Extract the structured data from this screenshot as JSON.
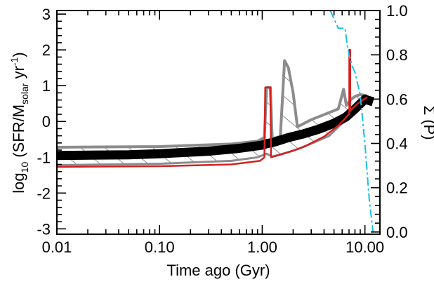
{
  "chart_data": {
    "type": "line",
    "title": "",
    "xlabel": "Time ago (Gyr)",
    "ylabel": {
      "prefix": "log",
      "prefix_sub": "10",
      "main_a": " (SFR/M",
      "main_sub": "solar",
      "main_b": " yr",
      "main_sup": "-1",
      "main_c": ")"
    },
    "y2label": "Σ (P)",
    "x_scale": "log",
    "xlim": [
      0.01,
      14.0
    ],
    "ylim": [
      -3.15,
      3.1
    ],
    "y2lim": [
      -0.01,
      1.0
    ],
    "x_ticks": [
      {
        "value": 0.01,
        "label": "0.01"
      },
      {
        "value": 0.1,
        "label": "0.10"
      },
      {
        "value": 1.0,
        "label": "1.00"
      },
      {
        "value": 10.0,
        "label": "10.00"
      }
    ],
    "y_ticks": [
      {
        "value": -3,
        "label": "-3"
      },
      {
        "value": -2,
        "label": "-2"
      },
      {
        "value": -1,
        "label": "-1"
      },
      {
        "value": 0,
        "label": "0"
      },
      {
        "value": 1,
        "label": "1"
      },
      {
        "value": 2,
        "label": "2"
      },
      {
        "value": 3,
        "label": "3"
      }
    ],
    "y2_ticks": [
      {
        "value": 0.0,
        "label": "0.0"
      },
      {
        "value": 0.2,
        "label": "0.2"
      },
      {
        "value": 0.4,
        "label": "0.4"
      },
      {
        "value": 0.6,
        "label": "0.6"
      },
      {
        "value": 0.8,
        "label": "0.8"
      },
      {
        "value": 1.0,
        "label": "1.0"
      }
    ],
    "series": [
      {
        "role": "upper-bound",
        "color": "#8c8c8c",
        "x": [
          0.01,
          0.1,
          0.5,
          0.9,
          1.05,
          1.1,
          1.15,
          1.2,
          1.25,
          1.5,
          1.65,
          1.8,
          2.0,
          2.2,
          3.0,
          4.5,
          5.5,
          6.2,
          6.6,
          7.2,
          8.0,
          9.0,
          10.5
        ],
        "y": [
          -0.72,
          -0.7,
          -0.63,
          -0.55,
          -0.45,
          0.95,
          0.95,
          0.95,
          -0.48,
          -0.42,
          1.7,
          1.5,
          0.8,
          -0.15,
          0.05,
          0.25,
          0.35,
          0.9,
          0.45,
          0.6,
          0.7,
          0.75,
          0.72
        ]
      },
      {
        "role": "lower-bound",
        "color": "#8c8c8c",
        "x": [
          0.01,
          0.1,
          0.5,
          0.9,
          1.1,
          1.25,
          1.5,
          2.0,
          3.0,
          4.5,
          6.0,
          7.2,
          8.5,
          10.5
        ],
        "y": [
          -1.22,
          -1.18,
          -1.1,
          -1.0,
          -0.9,
          -0.98,
          -0.92,
          -0.82,
          -0.62,
          -0.4,
          -0.05,
          0.2,
          0.45,
          0.62
        ]
      },
      {
        "role": "best-fit",
        "color": "#000000",
        "x": [
          0.01,
          0.05,
          0.1,
          0.3,
          0.6,
          1.0,
          1.1,
          1.3,
          1.8,
          2.5,
          3.5,
          5.0,
          6.5,
          8.0,
          10.0,
          12.0
        ],
        "y": [
          -0.95,
          -0.93,
          -0.9,
          -0.83,
          -0.75,
          -0.66,
          -0.62,
          -0.58,
          -0.45,
          -0.35,
          -0.22,
          -0.05,
          0.12,
          0.35,
          0.62,
          0.55
        ]
      },
      {
        "role": "sfh-red",
        "color": "#d42020",
        "x": [
          0.01,
          0.1,
          0.5,
          0.95,
          1.05,
          1.07,
          1.2,
          1.22,
          1.5,
          2.5,
          4.0,
          5.5,
          6.6,
          7.05,
          7.05,
          7.2,
          7.2,
          8.5,
          10.5
        ],
        "y": [
          -1.27,
          -1.25,
          -1.2,
          -1.1,
          -1.0,
          0.95,
          0.95,
          -1.0,
          -0.93,
          -0.72,
          -0.42,
          -0.12,
          0.12,
          0.22,
          2.0,
          2.0,
          0.3,
          0.5,
          0.68
        ]
      },
      {
        "role": "cumulative-probability",
        "axis": "y2",
        "color": "#19c0e6",
        "x": [
          4.6,
          5.5,
          6.4,
          6.8,
          7.0,
          7.5,
          8.0,
          9.0,
          10.0,
          11.0,
          12.0
        ],
        "y": [
          1.0,
          0.92,
          0.92,
          0.83,
          0.8,
          0.75,
          0.72,
          0.62,
          0.4,
          0.15,
          0.0
        ]
      }
    ]
  }
}
